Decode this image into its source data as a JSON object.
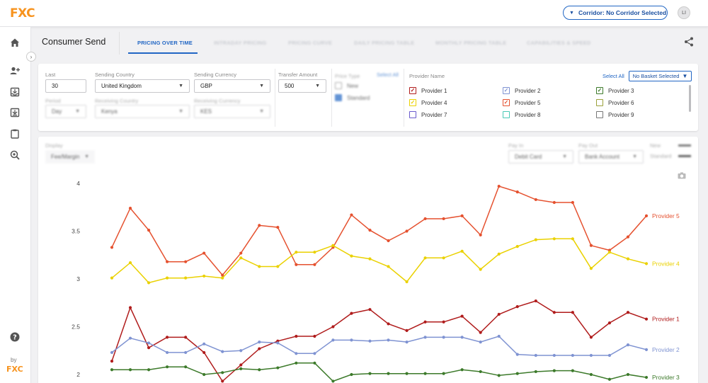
{
  "app": {
    "logo": "FXC",
    "by_label": "by",
    "by_logo": "FXC"
  },
  "header": {
    "corridor_label": "Corridor: No Corridor Selected",
    "avatar": "LI"
  },
  "page": {
    "title": "Consumer Send"
  },
  "tabs": [
    {
      "label": "PRICING OVER TIME",
      "active": true
    },
    {
      "label": "INTRADAY PRICING"
    },
    {
      "label": "PRICING CURVE"
    },
    {
      "label": "DAILY PRICING TABLE"
    },
    {
      "label": "MONTHLY PRICING TABLE"
    },
    {
      "label": "CAPABILITIES & SPEED"
    }
  ],
  "filters": {
    "last_label": "Last",
    "last_value": "30",
    "sending_country_label": "Sending Country",
    "sending_country_value": "United Kingdom",
    "sending_currency_label": "Sending Currency",
    "sending_currency_value": "GBP",
    "transfer_amount_label": "Transfer Amount",
    "transfer_amount_value": "500",
    "period_label": "Period",
    "period_value": "Day",
    "receiving_country_label": "Receiving Country",
    "receiving_country_value": "Kenya",
    "receiving_currency_label": "Receiving Currency",
    "receiving_currency_value": "KES",
    "price_type_label": "Price Type",
    "price_type_select_all": "Select All",
    "price_type_new": "New",
    "price_type_standard": "Standard"
  },
  "providers_panel": {
    "heading": "Provider Name",
    "select_all": "Select All",
    "basket_label": "No Basket Selected",
    "providers": [
      {
        "name": "Provider 1",
        "color": "#b01c1c",
        "checked": true
      },
      {
        "name": "Provider 2",
        "color": "#7f93d2",
        "checked": true
      },
      {
        "name": "Provider 3",
        "color": "#3c7a2a",
        "checked": true
      },
      {
        "name": "Provider 4",
        "color": "#ead100",
        "checked": true
      },
      {
        "name": "Provider 5",
        "color": "#e5512f",
        "checked": true
      },
      {
        "name": "Provider 6",
        "color": "#9aa03a",
        "checked": false
      },
      {
        "name": "Provider 7",
        "color": "#6a5acd",
        "checked": false
      },
      {
        "name": "Provider 8",
        "color": "#49c9b6",
        "checked": false
      },
      {
        "name": "Provider 9",
        "color": "#777777",
        "checked": false
      }
    ]
  },
  "chart_controls": {
    "display_label": "Display",
    "display_value": "Fee/Margin",
    "pay_in_label": "Pay In",
    "pay_in_value": "Debit Card",
    "pay_out_label": "Pay Out",
    "pay_out_value": "Bank Account",
    "new_label": "New",
    "standard_label": "Standard"
  },
  "chart_data": {
    "type": "line",
    "ylim": [
      1.95,
      4.1
    ],
    "yticks": [
      2,
      2.5,
      3,
      3.5,
      4
    ],
    "ytick_labels": [
      "2",
      "2.5",
      "3",
      "3.5",
      "4"
    ],
    "grid": false,
    "legend": "inline-right",
    "series": [
      {
        "name": "Provider 5",
        "color": "#e5512f",
        "values": [
          3.33,
          3.74,
          3.51,
          3.18,
          3.18,
          3.27,
          3.04,
          3.27,
          3.56,
          3.54,
          3.15,
          3.15,
          3.33,
          3.67,
          3.51,
          3.4,
          3.5,
          3.63,
          3.63,
          3.66,
          3.46,
          3.97,
          3.91,
          3.83,
          3.8,
          3.8,
          3.35,
          3.3,
          3.44,
          3.66
        ]
      },
      {
        "name": "Provider 4",
        "color": "#ead100",
        "values": [
          3.01,
          3.17,
          2.96,
          3.01,
          3.01,
          3.03,
          3.01,
          3.22,
          3.13,
          3.13,
          3.28,
          3.28,
          3.35,
          3.24,
          3.21,
          3.13,
          2.97,
          3.22,
          3.22,
          3.29,
          3.1,
          3.26,
          3.34,
          3.41,
          3.42,
          3.42,
          3.11,
          3.28,
          3.21,
          3.16
        ]
      },
      {
        "name": "Provider 1",
        "color": "#b01c1c",
        "values": [
          2.14,
          2.7,
          2.28,
          2.39,
          2.39,
          2.23,
          1.93,
          2.1,
          2.27,
          2.35,
          2.4,
          2.4,
          2.5,
          2.64,
          2.68,
          2.53,
          2.46,
          2.55,
          2.55,
          2.61,
          2.44,
          2.63,
          2.71,
          2.77,
          2.65,
          2.65,
          2.39,
          2.54,
          2.65,
          2.58
        ]
      },
      {
        "name": "Provider 2",
        "color": "#7f93d2",
        "values": [
          2.23,
          2.38,
          2.33,
          2.23,
          2.23,
          2.32,
          2.24,
          2.25,
          2.34,
          2.33,
          2.22,
          2.22,
          2.36,
          2.36,
          2.35,
          2.36,
          2.34,
          2.39,
          2.39,
          2.39,
          2.34,
          2.4,
          2.21,
          2.2,
          2.2,
          2.2,
          2.2,
          2.2,
          2.31,
          2.26
        ]
      },
      {
        "name": "Provider 3",
        "color": "#3c7a2a",
        "values": [
          2.05,
          2.05,
          2.05,
          2.08,
          2.08,
          2.0,
          2.02,
          2.06,
          2.05,
          2.07,
          2.12,
          2.12,
          1.93,
          2.0,
          2.01,
          2.01,
          2.01,
          2.01,
          2.01,
          2.05,
          2.03,
          1.99,
          2.01,
          2.03,
          2.04,
          2.04,
          2.0,
          1.95,
          2.0,
          1.97
        ]
      }
    ]
  }
}
